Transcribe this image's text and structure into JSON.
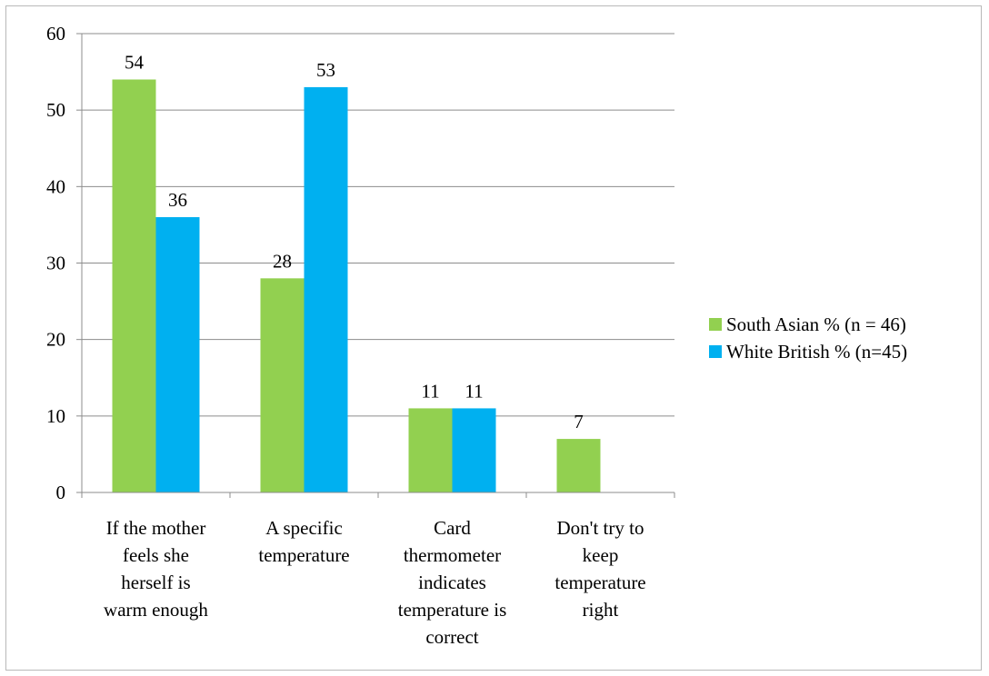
{
  "chart_data": {
    "type": "bar",
    "categories": [
      [
        "If the mother",
        "feels she",
        "herself is",
        "warm enough"
      ],
      [
        "A specific",
        "temperature"
      ],
      [
        "Card",
        "thermometer",
        "indicates",
        "temperature is",
        "correct"
      ],
      [
        "Don't try to",
        "keep",
        "temperature",
        "right"
      ]
    ],
    "series": [
      {
        "name": "South Asian % (n = 46)",
        "color": "#92d050",
        "values": [
          54,
          28,
          11,
          7
        ]
      },
      {
        "name": "White British % (n=45)",
        "color": "#00b0f0",
        "values": [
          36,
          53,
          11,
          null
        ]
      }
    ],
    "ylim": [
      0,
      60
    ],
    "yticks": [
      0,
      10,
      20,
      30,
      40,
      50,
      60
    ],
    "grid": true,
    "legend": "right"
  }
}
